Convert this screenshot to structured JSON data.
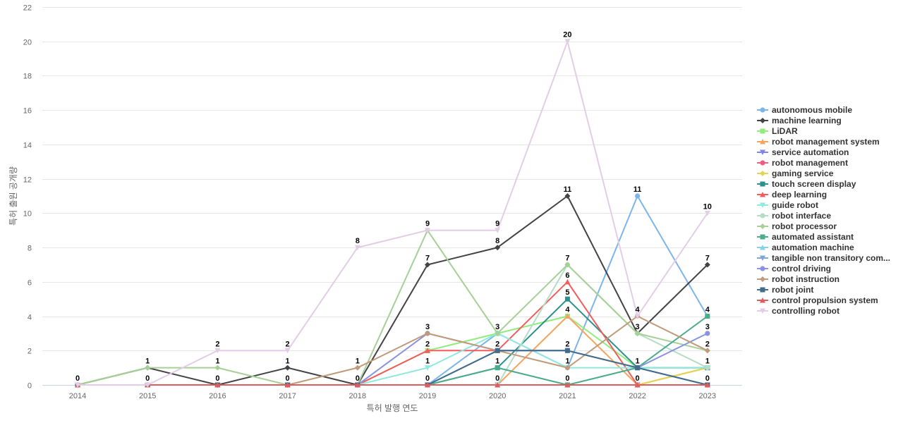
{
  "chart_data": {
    "type": "line",
    "xlabel": "특허 발행 연도",
    "ylabel": "특허 출원 공개량",
    "ylim": [
      0,
      22
    ],
    "yticks": [
      0,
      2,
      4,
      6,
      8,
      10,
      12,
      14,
      16,
      18,
      20,
      22
    ],
    "grid": true,
    "legend_position": "right",
    "categories": [
      "2014",
      "2015",
      "2016",
      "2017",
      "2018",
      "2019",
      "2020",
      "2021",
      "2022",
      "2023"
    ],
    "series": [
      {
        "name": "autonomous mobile",
        "color": "#7cb5ec",
        "marker": "circle",
        "values": [
          0,
          0,
          0,
          0,
          0,
          0,
          3,
          1,
          11,
          4
        ]
      },
      {
        "name": "machine learning",
        "color": "#434348",
        "marker": "diamond",
        "values": [
          0,
          1,
          0,
          1,
          0,
          7,
          8,
          11,
          3,
          7
        ]
      },
      {
        "name": "LiDAR",
        "color": "#90ed7d",
        "marker": "square",
        "values": [
          0,
          0,
          0,
          0,
          0,
          2,
          3,
          4,
          1,
          1
        ]
      },
      {
        "name": "robot management system",
        "color": "#f7a35c",
        "marker": "triangle",
        "values": [
          0,
          0,
          0,
          0,
          0,
          0,
          0,
          4,
          0,
          1
        ]
      },
      {
        "name": "service automation",
        "color": "#8085e9",
        "marker": "triangle-down",
        "values": [
          0,
          0,
          0,
          0,
          0,
          0,
          0,
          0,
          0,
          0
        ]
      },
      {
        "name": "robot management",
        "color": "#f15c80",
        "marker": "circle",
        "values": [
          0,
          0,
          0,
          0,
          0,
          0,
          0,
          0,
          0,
          0
        ]
      },
      {
        "name": "gaming service",
        "color": "#e4d354",
        "marker": "diamond",
        "values": [
          0,
          0,
          0,
          0,
          0,
          0,
          0,
          0,
          0,
          1
        ]
      },
      {
        "name": "touch screen display",
        "color": "#2b908f",
        "marker": "square",
        "values": [
          0,
          0,
          0,
          0,
          0,
          0,
          1,
          5,
          1,
          1
        ]
      },
      {
        "name": "deep learning",
        "color": "#f45b5b",
        "marker": "triangle",
        "values": [
          0,
          0,
          0,
          0,
          0,
          2,
          2,
          6,
          0,
          0
        ]
      },
      {
        "name": "guide robot",
        "color": "#91e8e1",
        "marker": "triangle-down",
        "values": [
          0,
          0,
          0,
          0,
          0,
          1,
          3,
          1,
          1,
          1
        ]
      },
      {
        "name": "robot interface",
        "color": "#b4dcc6",
        "marker": "circle",
        "values": [
          0,
          0,
          0,
          0,
          0,
          0,
          0,
          7,
          3,
          1
        ]
      },
      {
        "name": "robot processor",
        "color": "#a6d096",
        "marker": "diamond",
        "values": [
          0,
          1,
          1,
          0,
          0,
          9,
          3,
          7,
          3,
          2
        ]
      },
      {
        "name": "automated assistant",
        "color": "#4aac8c",
        "marker": "square",
        "values": [
          0,
          0,
          0,
          0,
          0,
          0,
          1,
          0,
          1,
          4
        ]
      },
      {
        "name": "automation machine",
        "color": "#85d3e8",
        "marker": "triangle",
        "values": [
          0,
          0,
          0,
          0,
          0,
          0,
          0,
          0,
          0,
          0
        ]
      },
      {
        "name": "tangible non transitory com...",
        "color": "#7fa7d6",
        "marker": "triangle-down",
        "values": [
          0,
          0,
          0,
          0,
          0,
          0,
          2,
          2,
          1,
          0
        ]
      },
      {
        "name": "control driving",
        "color": "#8a93e0",
        "marker": "circle",
        "values": [
          0,
          0,
          0,
          0,
          0,
          3,
          2,
          2,
          1,
          3
        ]
      },
      {
        "name": "robot instruction",
        "color": "#c19a7a",
        "marker": "diamond",
        "values": [
          0,
          0,
          0,
          0,
          1,
          3,
          2,
          1,
          4,
          2
        ]
      },
      {
        "name": "robot joint",
        "color": "#426d8a",
        "marker": "square",
        "values": [
          0,
          0,
          0,
          0,
          0,
          0,
          2,
          2,
          1,
          0
        ]
      },
      {
        "name": "control propulsion system",
        "color": "#e05b5b",
        "marker": "triangle",
        "values": [
          0,
          0,
          0,
          0,
          0,
          0,
          0,
          0,
          0,
          0
        ]
      },
      {
        "name": "controlling robot",
        "color": "#e3cde6",
        "marker": "triangle-down",
        "values": [
          0,
          0,
          2,
          2,
          8,
          9,
          9,
          20,
          4,
          10
        ]
      }
    ],
    "data_labels": [
      {
        "x": "2014",
        "value": 0
      },
      {
        "x": "2015",
        "value": 1
      },
      {
        "x": "2015",
        "value": 0
      },
      {
        "x": "2016",
        "value": 2
      },
      {
        "x": "2016",
        "value": 1
      },
      {
        "x": "2016",
        "value": 0
      },
      {
        "x": "2017",
        "value": 2
      },
      {
        "x": "2017",
        "value": 1
      },
      {
        "x": "2017",
        "value": 0
      },
      {
        "x": "2018",
        "value": 8
      },
      {
        "x": "2018",
        "value": 1
      },
      {
        "x": "2018",
        "value": 0
      },
      {
        "x": "2019",
        "value": 9
      },
      {
        "x": "2019",
        "value": 7
      },
      {
        "x": "2019",
        "value": 3
      },
      {
        "x": "2019",
        "value": 2
      },
      {
        "x": "2019",
        "value": 1
      },
      {
        "x": "2019",
        "value": 0
      },
      {
        "x": "2020",
        "value": 9
      },
      {
        "x": "2020",
        "value": 8
      },
      {
        "x": "2020",
        "value": 3
      },
      {
        "x": "2020",
        "value": 2
      },
      {
        "x": "2020",
        "value": 1
      },
      {
        "x": "2020",
        "value": 0
      },
      {
        "x": "2021",
        "value": 20
      },
      {
        "x": "2021",
        "value": 11
      },
      {
        "x": "2021",
        "value": 7
      },
      {
        "x": "2021",
        "value": 6
      },
      {
        "x": "2021",
        "value": 5
      },
      {
        "x": "2021",
        "value": 4
      },
      {
        "x": "2021",
        "value": 2
      },
      {
        "x": "2021",
        "value": 1
      },
      {
        "x": "2021",
        "value": 0
      },
      {
        "x": "2022",
        "value": 11
      },
      {
        "x": "2022",
        "value": 4
      },
      {
        "x": "2022",
        "value": 3
      },
      {
        "x": "2022",
        "value": 1
      },
      {
        "x": "2022",
        "value": 0
      },
      {
        "x": "2023",
        "value": 10
      },
      {
        "x": "2023",
        "value": 7
      },
      {
        "x": "2023",
        "value": 4
      },
      {
        "x": "2023",
        "value": 3
      },
      {
        "x": "2023",
        "value": 2
      },
      {
        "x": "2023",
        "value": 1
      },
      {
        "x": "2023",
        "value": 0
      }
    ]
  }
}
